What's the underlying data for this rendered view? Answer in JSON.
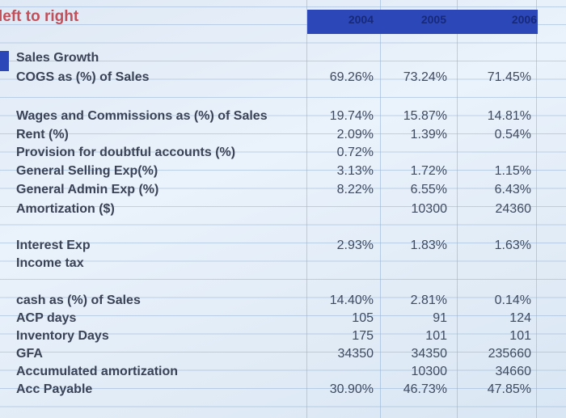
{
  "title": "left to right",
  "years": [
    "2004",
    "2005",
    "2006"
  ],
  "colors": {
    "header": "#2c47b8",
    "title": "#c0505a"
  },
  "rows": [
    {
      "label": "Sales Growth",
      "values": [
        "",
        "",
        ""
      ]
    },
    {
      "label": "COGS as (%) of Sales",
      "values": [
        "69.26%",
        "73.24%",
        "71.45%"
      ]
    },
    {
      "label": "Wages and Commissions as (%) of Sales",
      "values": [
        "19.74%",
        "15.87%",
        "14.81%"
      ]
    },
    {
      "label": "Rent (%)",
      "values": [
        "2.09%",
        "1.39%",
        "0.54%"
      ]
    },
    {
      "label": "Provision for doubtful accounts (%)",
      "values": [
        "0.72%",
        "",
        ""
      ]
    },
    {
      "label": "General Selling Exp(%)",
      "values": [
        "3.13%",
        "1.72%",
        "1.15%"
      ]
    },
    {
      "label": "General Admin Exp (%)",
      "values": [
        "8.22%",
        "6.55%",
        "6.43%"
      ]
    },
    {
      "label": "Amortization ($)",
      "values": [
        "",
        "10300",
        "24360"
      ]
    },
    {
      "label": "Interest Exp",
      "values": [
        "2.93%",
        "1.83%",
        "1.63%"
      ]
    },
    {
      "label": "Income tax",
      "values": [
        "",
        "",
        ""
      ]
    },
    {
      "label": "cash as (%) of Sales",
      "values": [
        "14.40%",
        "2.81%",
        "0.14%"
      ]
    },
    {
      "label": "ACP days",
      "values": [
        "105",
        "91",
        "124"
      ]
    },
    {
      "label": "Inventory Days",
      "values": [
        "175",
        "101",
        "101"
      ]
    },
    {
      "label": "GFA",
      "values": [
        "34350",
        "34350",
        "235660"
      ]
    },
    {
      "label": "Accumulated amortization",
      "values": [
        "",
        "10300",
        "34660"
      ]
    },
    {
      "label": "Acc Payable",
      "values": [
        "30.90%",
        "46.73%",
        "47.85%"
      ]
    }
  ]
}
